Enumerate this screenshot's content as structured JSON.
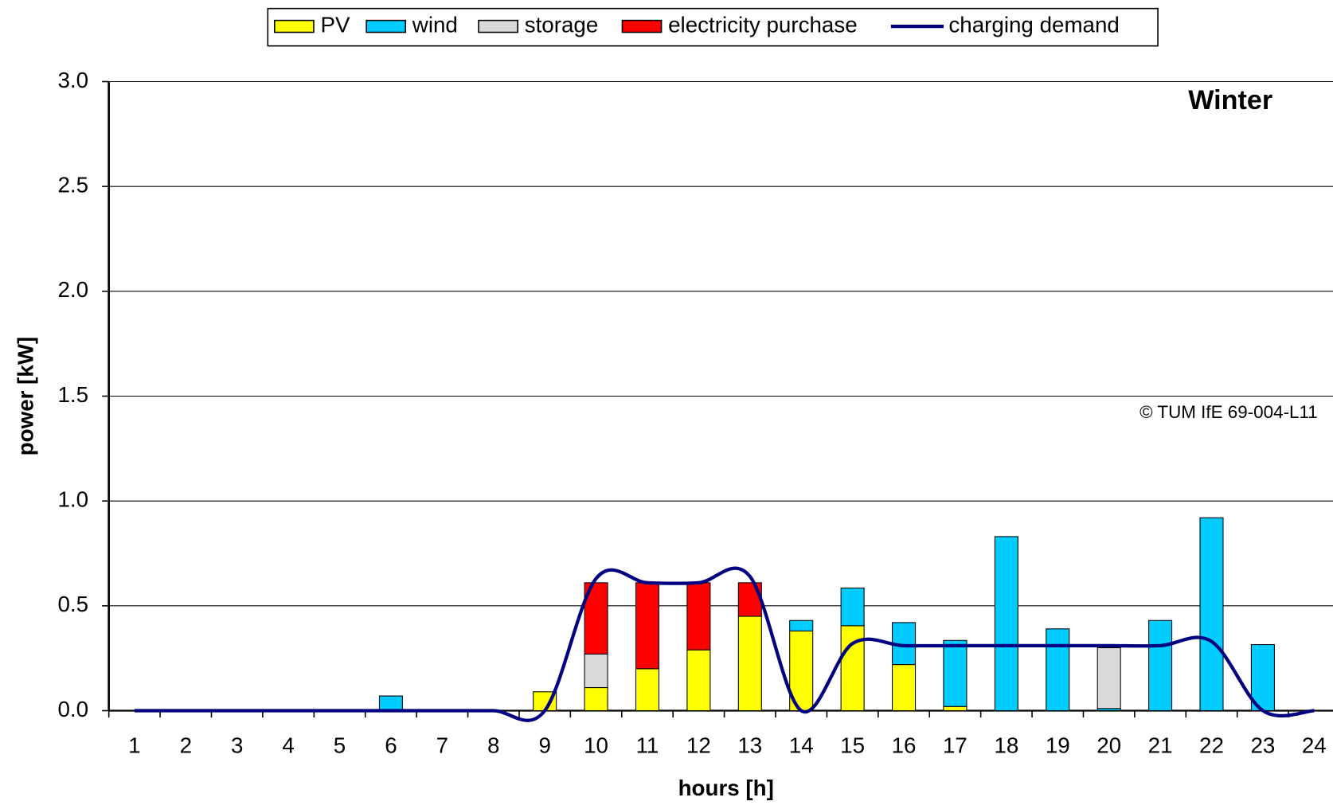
{
  "chart_data": {
    "type": "bar",
    "stacked": true,
    "annotations": [
      "Winter",
      "© TUM IfE 69-004-L11"
    ],
    "x_label": "hours [h]",
    "y_label": "power [kW]",
    "categories": [
      "1",
      "2",
      "3",
      "4",
      "5",
      "6",
      "7",
      "8",
      "9",
      "10",
      "11",
      "12",
      "13",
      "14",
      "15",
      "16",
      "17",
      "18",
      "19",
      "20",
      "21",
      "22",
      "23",
      "24"
    ],
    "series": [
      {
        "name": "PV",
        "color": "#ffff00",
        "type": "bar",
        "values": [
          null,
          null,
          null,
          null,
          null,
          null,
          null,
          null,
          0.09,
          0.11,
          0.2,
          0.29,
          0.45,
          0.38,
          0.405,
          0.22,
          0.02,
          null,
          null,
          null,
          null,
          null,
          null,
          null
        ]
      },
      {
        "name": "wind",
        "color": "#00ccff",
        "type": "bar",
        "values": [
          null,
          null,
          null,
          null,
          null,
          0.07,
          null,
          null,
          null,
          null,
          null,
          null,
          null,
          0.05,
          0.18,
          0.2,
          0.315,
          0.83,
          0.39,
          0.01,
          0.43,
          0.92,
          0.315,
          null
        ]
      },
      {
        "name": "storage",
        "color": "#d9d9d9",
        "type": "bar",
        "values": [
          null,
          null,
          null,
          null,
          null,
          null,
          null,
          null,
          null,
          0.16,
          null,
          null,
          null,
          null,
          null,
          null,
          null,
          null,
          null,
          0.29,
          null,
          null,
          null,
          null
        ]
      },
      {
        "name": "electricity purchase",
        "color": "#ff0000",
        "type": "bar",
        "values": [
          null,
          null,
          null,
          null,
          null,
          null,
          null,
          null,
          null,
          0.34,
          0.41,
          0.32,
          0.16,
          null,
          null,
          null,
          null,
          null,
          null,
          null,
          null,
          null,
          null,
          null
        ]
      },
      {
        "name": "charging demand",
        "color": "#000080",
        "type": "line",
        "values": [
          0,
          0,
          0,
          0,
          0,
          0,
          0,
          0,
          0,
          0.63,
          0.61,
          0.61,
          0.64,
          0,
          0.32,
          0.31,
          0.31,
          0.31,
          0.31,
          0.31,
          0.31,
          0.33,
          0,
          0
        ]
      }
    ],
    "ylim": [
      0,
      3
    ],
    "yticks": [
      {
        "value": 0,
        "label": "0.0"
      },
      0.5,
      {
        "value": 1,
        "label": "1.0"
      },
      1.5,
      {
        "value": 2,
        "label": "2.0"
      },
      2.5,
      {
        "value": 3,
        "label": "3.0"
      }
    ],
    "grid": true,
    "legend": "top"
  }
}
